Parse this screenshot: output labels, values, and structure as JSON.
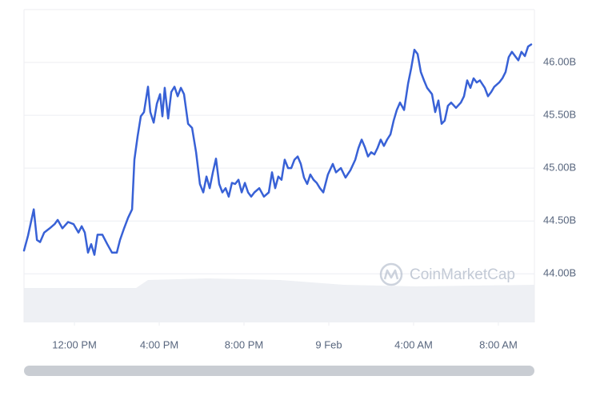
{
  "chart_data": {
    "type": "line",
    "watermark": "CoinMarketCap",
    "x": [
      9.62,
      9.81,
      10.08,
      10.23,
      10.38,
      10.57,
      10.83,
      11.06,
      11.21,
      11.43,
      11.7,
      11.96,
      12.19,
      12.34,
      12.49,
      12.64,
      12.79,
      12.94,
      13.09,
      13.32,
      13.55,
      13.77,
      14.0,
      14.15,
      14.34,
      14.53,
      14.72,
      14.83,
      14.98,
      15.13,
      15.28,
      15.47,
      15.58,
      15.74,
      15.89,
      16.04,
      16.15,
      16.26,
      16.42,
      16.57,
      16.72,
      16.87,
      17.02,
      17.17,
      17.36,
      17.55,
      17.74,
      17.92,
      18.08,
      18.23,
      18.38,
      18.53,
      18.68,
      18.83,
      18.98,
      19.13,
      19.28,
      19.43,
      19.58,
      19.74,
      19.89,
      20.04,
      20.19,
      20.34,
      20.49,
      20.72,
      20.94,
      21.17,
      21.32,
      21.47,
      21.62,
      21.77,
      21.92,
      22.08,
      22.23,
      22.38,
      22.53,
      22.68,
      22.83,
      22.98,
      23.13,
      23.28,
      23.43,
      23.58,
      23.74,
      23.96,
      24.19,
      24.34,
      24.57,
      24.79,
      25.02,
      25.25,
      25.4,
      25.55,
      25.7,
      25.85,
      26.0,
      26.15,
      26.3,
      26.45,
      26.6,
      26.75,
      26.91,
      27.06,
      27.21,
      27.36,
      27.55,
      27.74,
      27.89,
      28.04,
      28.19,
      28.34,
      28.49,
      28.64,
      28.87,
      29.02,
      29.17,
      29.32,
      29.47,
      29.62,
      29.77,
      30.0,
      30.23,
      30.38,
      30.53,
      30.68,
      30.83,
      30.98,
      31.13,
      31.36,
      31.51,
      31.66,
      31.81,
      32.04,
      32.19,
      32.34,
      32.49,
      32.64,
      32.79,
      32.94,
      33.09,
      33.25,
      33.4,
      33.55
    ],
    "values": [
      44.22,
      44.36,
      44.61,
      44.32,
      44.3,
      44.39,
      44.43,
      44.47,
      44.51,
      44.43,
      44.49,
      44.47,
      44.39,
      44.45,
      44.39,
      44.2,
      44.28,
      44.18,
      44.37,
      44.37,
      44.28,
      44.2,
      44.2,
      44.32,
      44.43,
      44.53,
      44.61,
      45.08,
      45.3,
      45.49,
      45.53,
      45.77,
      45.53,
      45.43,
      45.61,
      45.7,
      45.49,
      45.76,
      45.47,
      45.72,
      45.77,
      45.68,
      45.76,
      45.7,
      45.42,
      45.38,
      45.15,
      44.85,
      44.77,
      44.92,
      44.81,
      44.96,
      45.09,
      44.85,
      44.77,
      44.81,
      44.73,
      44.86,
      44.85,
      44.89,
      44.77,
      44.86,
      44.77,
      44.73,
      44.77,
      44.81,
      44.73,
      44.77,
      44.96,
      44.81,
      44.92,
      44.89,
      45.08,
      45.0,
      45.0,
      45.08,
      45.11,
      45.04,
      44.91,
      44.85,
      44.94,
      44.89,
      44.86,
      44.81,
      44.77,
      44.94,
      45.04,
      44.96,
      45.0,
      44.91,
      44.98,
      45.08,
      45.19,
      45.27,
      45.2,
      45.11,
      45.15,
      45.13,
      45.19,
      45.27,
      45.21,
      45.27,
      45.32,
      45.45,
      45.55,
      45.62,
      45.55,
      45.8,
      45.95,
      46.12,
      46.08,
      45.91,
      45.83,
      45.76,
      45.7,
      45.53,
      45.64,
      45.42,
      45.45,
      45.59,
      45.62,
      45.57,
      45.62,
      45.68,
      45.83,
      45.76,
      45.85,
      45.81,
      45.83,
      45.76,
      45.68,
      45.72,
      45.77,
      45.81,
      45.85,
      45.91,
      46.05,
      46.1,
      46.06,
      46.02,
      46.1,
      46.06,
      46.15,
      46.17
    ],
    "color": "#3861d6",
    "xlim": [
      9.62,
      33.7
    ],
    "xticks": [
      {
        "value": 12,
        "label": "12:00 PM"
      },
      {
        "value": 16,
        "label": "4:00 PM"
      },
      {
        "value": 20,
        "label": "8:00 PM"
      },
      {
        "value": 24,
        "label": "9 Feb"
      },
      {
        "value": 28,
        "label": "4:00 AM"
      },
      {
        "value": 32,
        "label": "8:00 AM"
      }
    ],
    "ylim": [
      43.54,
      46.5
    ],
    "yticks": [
      {
        "value": 44,
        "label": "44.00B"
      },
      {
        "value": 44.5,
        "label": "44.50B"
      },
      {
        "value": 45,
        "label": "45.00B"
      },
      {
        "value": 45.5,
        "label": "45.50B"
      },
      {
        "value": 46,
        "label": "46.00B"
      }
    ],
    "grid": true
  }
}
